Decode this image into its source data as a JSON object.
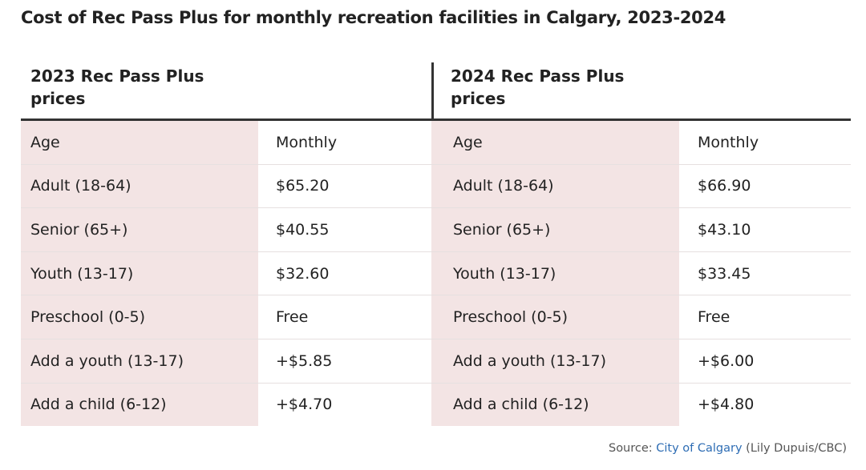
{
  "title": "Cost of Rec Pass Plus for monthly recreation facilities in Calgary, 2023-2024",
  "chart_data": {
    "type": "table",
    "title": "Cost of Rec Pass Plus for monthly recreation facilities in Calgary, 2023-2024",
    "tables": [
      {
        "heading": "2023 Rec Pass Plus prices",
        "columns": [
          "Age",
          "Monthly"
        ],
        "rows": [
          [
            "Adult (18-64)",
            "$65.20"
          ],
          [
            "Senior (65+)",
            "$40.55"
          ],
          [
            "Youth (13-17)",
            "$32.60"
          ],
          [
            "Preschool (0-5)",
            "Free"
          ],
          [
            "Add a youth (13-17)",
            "+$5.85"
          ],
          [
            "Add a child (6-12)",
            "+$4.70"
          ]
        ]
      },
      {
        "heading": "2024 Rec Pass Plus prices",
        "columns": [
          "Age",
          "Monthly"
        ],
        "rows": [
          [
            "Adult (18-64)",
            "$66.90"
          ],
          [
            "Senior (65+)",
            "$43.10"
          ],
          [
            "Youth (13-17)",
            "$33.45"
          ],
          [
            "Preschool (0-5)",
            "Free"
          ],
          [
            "Add a youth (13-17)",
            "+$6.00"
          ],
          [
            "Add a child (6-12)",
            "+$4.80"
          ]
        ]
      }
    ]
  },
  "source": {
    "prefix": "Source: ",
    "link_text": "City of Calgary",
    "suffix": " (Lily Dupuis/CBC)"
  },
  "colors": {
    "age_column_bg": "#f3e4e4",
    "rule": "#333333",
    "link": "#2e6db4"
  }
}
